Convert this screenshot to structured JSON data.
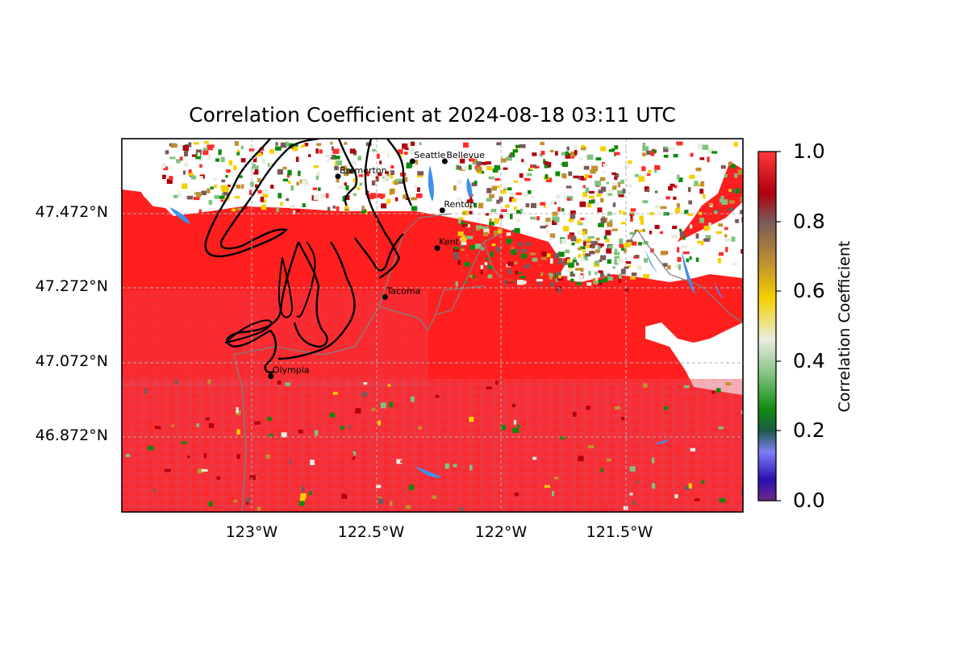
{
  "figure": {
    "title": "Correlation Coefficient at 2024-08-18 03:11 UTC"
  },
  "map": {
    "lat_labels": [
      "47.472°N",
      "47.272°N",
      "47.072°N",
      "46.872°N"
    ],
    "lon_labels": [
      "123°W",
      "122.5°W",
      "122°W",
      "121.5°W"
    ],
    "extent": {
      "lon_min": -123.5,
      "lon_max": -121.0,
      "lat_min": 46.68,
      "lat_max": 47.67
    },
    "cities": [
      {
        "name": "Seattle",
        "lon": -122.33,
        "lat": 47.61
      },
      {
        "name": "Bellevue",
        "lon": -122.2,
        "lat": 47.61
      },
      {
        "name": "Bremerton",
        "lon": -122.63,
        "lat": 47.57
      },
      {
        "name": "Renton",
        "lon": -122.21,
        "lat": 47.48
      },
      {
        "name": "Kent",
        "lon": -122.23,
        "lat": 47.38
      },
      {
        "name": "Tacoma",
        "lon": -122.44,
        "lat": 47.25
      },
      {
        "name": "Olympia",
        "lon": -122.9,
        "lat": 47.04
      }
    ],
    "colors": {
      "dominant_field": "#ff1f1f",
      "coastline": "#000000",
      "water": "#3f8ff0",
      "county_lines": "#808080"
    }
  },
  "colorbar": {
    "label": "Correlation Coefficient",
    "ticks": [
      "1.0",
      "0.8",
      "0.6",
      "0.4",
      "0.2",
      "0.0"
    ],
    "range": [
      0.0,
      1.0
    ],
    "colormap_stops": [
      {
        "value": 0.0,
        "color": "#6f2a86"
      },
      {
        "value": 0.06,
        "color": "#2a0fb0"
      },
      {
        "value": 0.14,
        "color": "#7f7ff5"
      },
      {
        "value": 0.2,
        "color": "#1c5a4a"
      },
      {
        "value": 0.26,
        "color": "#0e8a0e"
      },
      {
        "value": 0.36,
        "color": "#7fc27f"
      },
      {
        "value": 0.46,
        "color": "#e8ede0"
      },
      {
        "value": 0.58,
        "color": "#f5d000"
      },
      {
        "value": 0.68,
        "color": "#c09030"
      },
      {
        "value": 0.8,
        "color": "#7a5a58"
      },
      {
        "value": 0.88,
        "color": "#b0000e"
      },
      {
        "value": 1.0,
        "color": "#ff3a3a"
      }
    ]
  }
}
